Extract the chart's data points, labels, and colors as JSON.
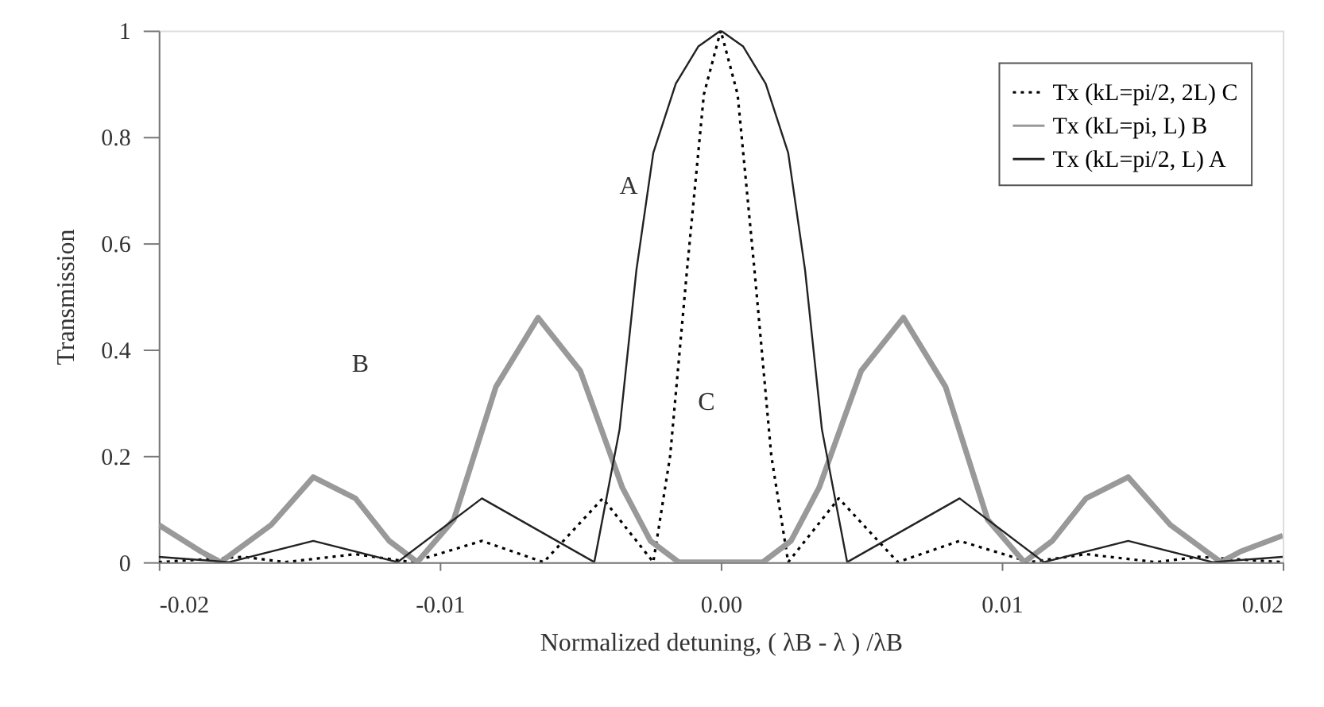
{
  "chart_data": {
    "type": "line",
    "xlabel": "Normalized detuning, ( λB - λ ) /λB",
    "ylabel": "Transmission",
    "xlim": [
      -0.02,
      0.02
    ],
    "ylim": [
      0,
      1
    ],
    "xticks": [
      -0.02,
      -0.01,
      {
        "value": 0,
        "label": "0.00"
      },
      0.01,
      0.02
    ],
    "yticks": [
      0,
      0.2,
      0.4,
      0.6,
      0.8,
      1
    ],
    "grid": false,
    "legend": "top right",
    "annotations": [
      "A",
      "B",
      "C"
    ],
    "series": [
      {
        "name": "Tx (kL=pi/2, 2L) C",
        "color": "#000000",
        "line_style": "dotted",
        "x": [
          -0.02,
          -0.017,
          -0.0155,
          -0.013,
          -0.011,
          -0.0085,
          -0.0063,
          -0.0042,
          -0.0024,
          -0.0018,
          -0.0012,
          -0.0006,
          0,
          0.0006,
          0.0012,
          0.0018,
          0.0024,
          0.0042,
          0.0063,
          0.0085,
          0.011,
          0.013,
          0.0155,
          0.017,
          0.02
        ],
        "values": [
          0.0,
          0.01,
          0.0,
          0.015,
          0.0,
          0.04,
          0.0,
          0.12,
          0.0,
          0.2,
          0.55,
          0.88,
          1,
          0.88,
          0.55,
          0.2,
          0.0,
          0.12,
          0.0,
          0.04,
          0.0,
          0.015,
          0.0,
          0.01,
          0.0
        ]
      },
      {
        "name": "Tx (kL=pi, L) B",
        "color": "#999999",
        "line_style": "solid",
        "x": [
          -0.02,
          -0.0185,
          -0.0178,
          -0.016,
          -0.0145,
          -0.013,
          -0.0118,
          -0.0108,
          -0.0095,
          -0.008,
          -0.0065,
          -0.005,
          -0.0035,
          -0.0025,
          -0.0015,
          0,
          0.0015,
          0.0025,
          0.0035,
          0.005,
          0.0065,
          0.008,
          0.0095,
          0.0108,
          0.0118,
          0.013,
          0.0145,
          0.016,
          0.0178,
          0.0185,
          0.02
        ],
        "values": [
          0.07,
          0.02,
          0.0,
          0.07,
          0.16,
          0.12,
          0.04,
          0.0,
          0.08,
          0.33,
          0.46,
          0.36,
          0.14,
          0.04,
          0.0,
          0.0,
          0.0,
          0.04,
          0.14,
          0.36,
          0.46,
          0.33,
          0.08,
          0.0,
          0.04,
          0.12,
          0.16,
          0.07,
          0.0,
          0.02,
          0.05
        ]
      },
      {
        "name": "Tx (kL=pi/2, L) A",
        "color": "#222222",
        "line_style": "solid",
        "x": [
          -0.02,
          -0.0175,
          -0.0145,
          -0.0115,
          -0.0085,
          -0.0045,
          -0.0036,
          -0.003,
          -0.0024,
          -0.0016,
          -0.0008,
          0,
          0.0008,
          0.0016,
          0.0024,
          0.003,
          0.0036,
          0.0045,
          0.0085,
          0.0115,
          0.0145,
          0.0175,
          0.02
        ],
        "values": [
          0.01,
          0.0,
          0.04,
          0.0,
          0.12,
          0.0,
          0.25,
          0.55,
          0.77,
          0.9,
          0.97,
          1,
          0.97,
          0.9,
          0.77,
          0.55,
          0.25,
          0.0,
          0.12,
          0.0,
          0.04,
          0.0,
          0.01
        ]
      }
    ]
  }
}
